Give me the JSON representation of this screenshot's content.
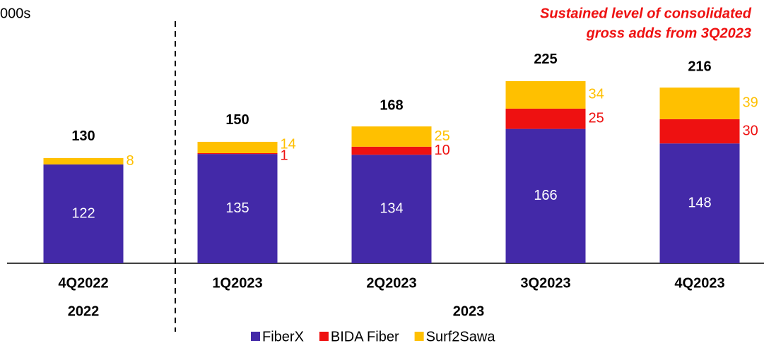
{
  "chart_data": {
    "type": "stacked_bar",
    "unit_label": "000s",
    "annotation": [
      "Sustained level of consolidated",
      "gross adds from 3Q2023"
    ],
    "categories": [
      "4Q2022",
      "1Q2023",
      "2Q2023",
      "3Q2023",
      "4Q2023"
    ],
    "groups": [
      {
        "label": "2022",
        "from": 0,
        "to": 0
      },
      {
        "label": "2023",
        "from": 1,
        "to": 4
      }
    ],
    "series": [
      {
        "name": "FiberX",
        "color": "#4329a8",
        "label_color": "#ffffff",
        "values": [
          122,
          135,
          134,
          166,
          148
        ]
      },
      {
        "name": "BIDA Fiber",
        "color": "#ee1111",
        "label_color": "#ee1111",
        "values": [
          null,
          1,
          10,
          25,
          30
        ]
      },
      {
        "name": "Surf2Sawa",
        "color": "#ffc000",
        "label_color": "#ffc000",
        "values": [
          8,
          14,
          25,
          34,
          39
        ]
      }
    ],
    "totals": [
      130,
      150,
      168,
      225,
      216
    ]
  }
}
